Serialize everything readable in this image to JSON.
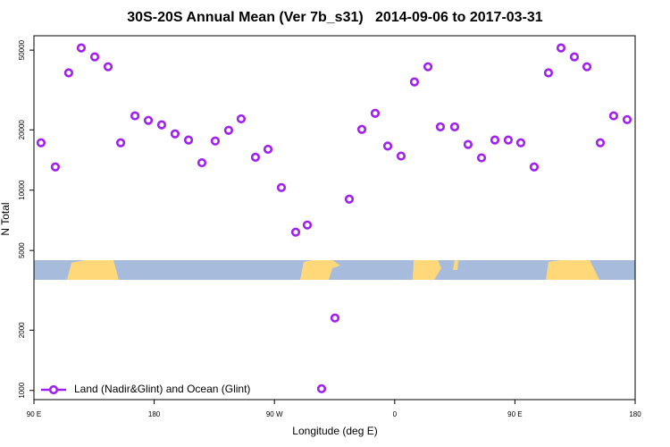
{
  "chart_data": {
    "type": "scatter",
    "title": "30S-20S Annual Mean (Ver 7b_s31)   2014-09-06 to 2017-03-31",
    "xlabel": "Longitude (deg E)",
    "ylabel": "N Total",
    "log_y": true,
    "grid": false,
    "legend": "bottom-left",
    "xlim": [
      90,
      540
    ],
    "ylim": [
      900,
      59000
    ],
    "xticks": [
      {
        "value": 90,
        "label": "90 E"
      },
      {
        "value": 180,
        "label": "180"
      },
      {
        "value": 270,
        "label": "90 W"
      },
      {
        "value": 360,
        "label": "0"
      },
      {
        "value": 450,
        "label": "90 E"
      },
      {
        "value": 540,
        "label": "180"
      }
    ],
    "yticks": [
      1000,
      2000,
      5000,
      10000,
      20000,
      50000
    ],
    "series": [
      {
        "name": "Land (Nadir&Glint) and Ocean (Glint)",
        "color": "#a020f0",
        "x": [
          95.3,
          106,
          116,
          125.4,
          135.5,
          145.5,
          154.9,
          165.6,
          175.6,
          185.6,
          195.6,
          205.7,
          215.7,
          225.7,
          235.7,
          245.1,
          255.8,
          265.2,
          275.2,
          285.9,
          294.6,
          305.3,
          315.3,
          326,
          335.4,
          345.4,
          354.8,
          364.8,
          374.8,
          384.9,
          394.2,
          404.9,
          414.9,
          425,
          435,
          445,
          454.4,
          464.4,
          475.1,
          484.5,
          494.5,
          503.9,
          513.9,
          523.9,
          534
        ],
        "values": [
          17240,
          13060,
          38500,
          51300,
          46300,
          41300,
          17240,
          23500,
          22300,
          21200,
          19100,
          17800,
          13700,
          17600,
          19900,
          22700,
          14600,
          16000,
          10300,
          6170,
          6700,
          1020,
          2300,
          9020,
          20100,
          24200,
          16600,
          14800,
          34700,
          41300,
          20700,
          20700,
          16900,
          14500,
          17800,
          17800,
          17240,
          13060,
          38500,
          51300,
          46300,
          41300,
          17240,
          23500,
          22500
        ]
      }
    ]
  }
}
